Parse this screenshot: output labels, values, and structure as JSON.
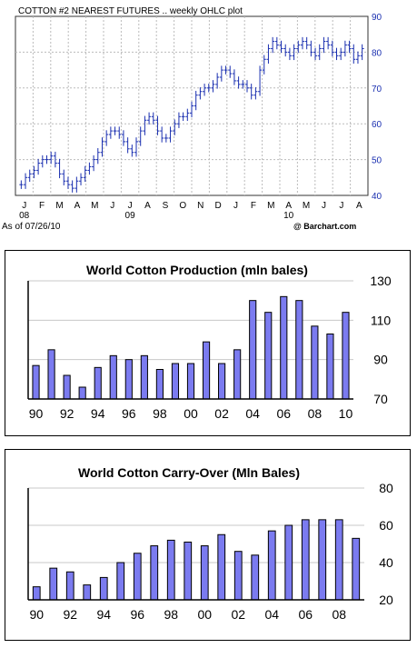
{
  "chart_data": [
    {
      "type": "ohlc",
      "title": "COTTON #2 NEAREST FUTURES .. weekly OHLC plot",
      "footer_left": "As of 07/26/10",
      "footer_right": "@ Barchart.com",
      "ylim": [
        40,
        90
      ],
      "yticks": [
        40,
        50,
        60,
        70,
        80,
        90
      ],
      "month_labels": [
        "J",
        "F",
        "M",
        "A",
        "M",
        "J",
        "J",
        "A",
        "S",
        "O",
        "N",
        "D",
        "J",
        "F",
        "M",
        "A",
        "M",
        "J",
        "J",
        "A"
      ],
      "year_labels": [
        {
          "label": "08",
          "month_index": 0
        },
        {
          "label": "09",
          "month_index": 6
        },
        {
          "label": "10",
          "month_index": 15
        }
      ],
      "grid": true,
      "color": "#1a2fb0",
      "weekly_close": [
        43,
        45,
        46,
        47,
        49,
        50,
        50,
        51,
        49,
        46,
        44,
        43,
        42,
        44,
        45,
        47,
        48,
        50,
        52,
        55,
        57,
        58,
        58,
        57,
        55,
        53,
        52,
        55,
        58,
        61,
        62,
        61,
        58,
        56,
        56,
        58,
        60,
        62,
        62,
        63,
        65,
        68,
        69,
        70,
        70,
        71,
        73,
        75,
        75,
        74,
        72,
        71,
        71,
        70,
        68,
        69,
        75,
        78,
        81,
        83,
        82,
        81,
        80,
        79,
        81,
        82,
        83,
        82,
        80,
        79,
        81,
        83,
        82,
        80,
        79,
        80,
        82,
        81,
        78,
        79,
        81
      ]
    },
    {
      "type": "bar",
      "title": "World Cotton Production (mln bales)",
      "x": [
        1990,
        1991,
        1992,
        1993,
        1994,
        1995,
        1996,
        1997,
        1998,
        1999,
        2000,
        2001,
        2002,
        2003,
        2004,
        2005,
        2006,
        2007,
        2008,
        2009,
        2010
      ],
      "values": [
        87,
        95,
        82,
        76,
        86,
        92,
        90,
        92,
        85,
        88,
        88,
        99,
        88,
        95,
        120,
        114,
        122,
        120,
        107,
        103,
        114
      ],
      "tick_labels": [
        "90",
        "92",
        "94",
        "96",
        "98",
        "00",
        "02",
        "04",
        "06",
        "08",
        "10"
      ],
      "ylim": [
        70,
        130
      ],
      "yticks": [
        70,
        90,
        110,
        130
      ],
      "grid": true,
      "bar_color": "#7b7bf0"
    },
    {
      "type": "bar",
      "title": "World Cotton Carry-Over (Mln Bales)",
      "x": [
        1990,
        1991,
        1992,
        1993,
        1994,
        1995,
        1996,
        1997,
        1998,
        1999,
        2000,
        2001,
        2002,
        2003,
        2004,
        2005,
        2006,
        2007,
        2008,
        2009
      ],
      "values": [
        27,
        37,
        35,
        28,
        32,
        40,
        45,
        49,
        52,
        51,
        49,
        55,
        46,
        44,
        57,
        60,
        63,
        63,
        63,
        53
      ],
      "tick_labels": [
        "90",
        "92",
        "94",
        "96",
        "98",
        "00",
        "02",
        "04",
        "06",
        "08"
      ],
      "ylim": [
        20,
        80
      ],
      "yticks": [
        20,
        40,
        60,
        80
      ],
      "grid": true,
      "bar_color": "#7b7bf0"
    }
  ]
}
